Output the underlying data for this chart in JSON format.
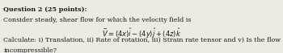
{
  "background_color": "#edeae3",
  "title_line": "Question 2 (25 points):",
  "line2": "Consider steady, shear flow for which the velocity field is",
  "equation": "$\\vec{V} = (4x)\\hat{i} - (4y)\\hat{j} + (4z)\\hat{k}$",
  "line4": "Calculate: i) Translation, ii) Rate of rotation, iii) Strain rate tensor and v) Is the flow",
  "line5": "incompressible?",
  "text_color": "#1a1a1a",
  "title_fontsize": 5.8,
  "body_fontsize": 5.8,
  "eq_fontsize": 6.0
}
